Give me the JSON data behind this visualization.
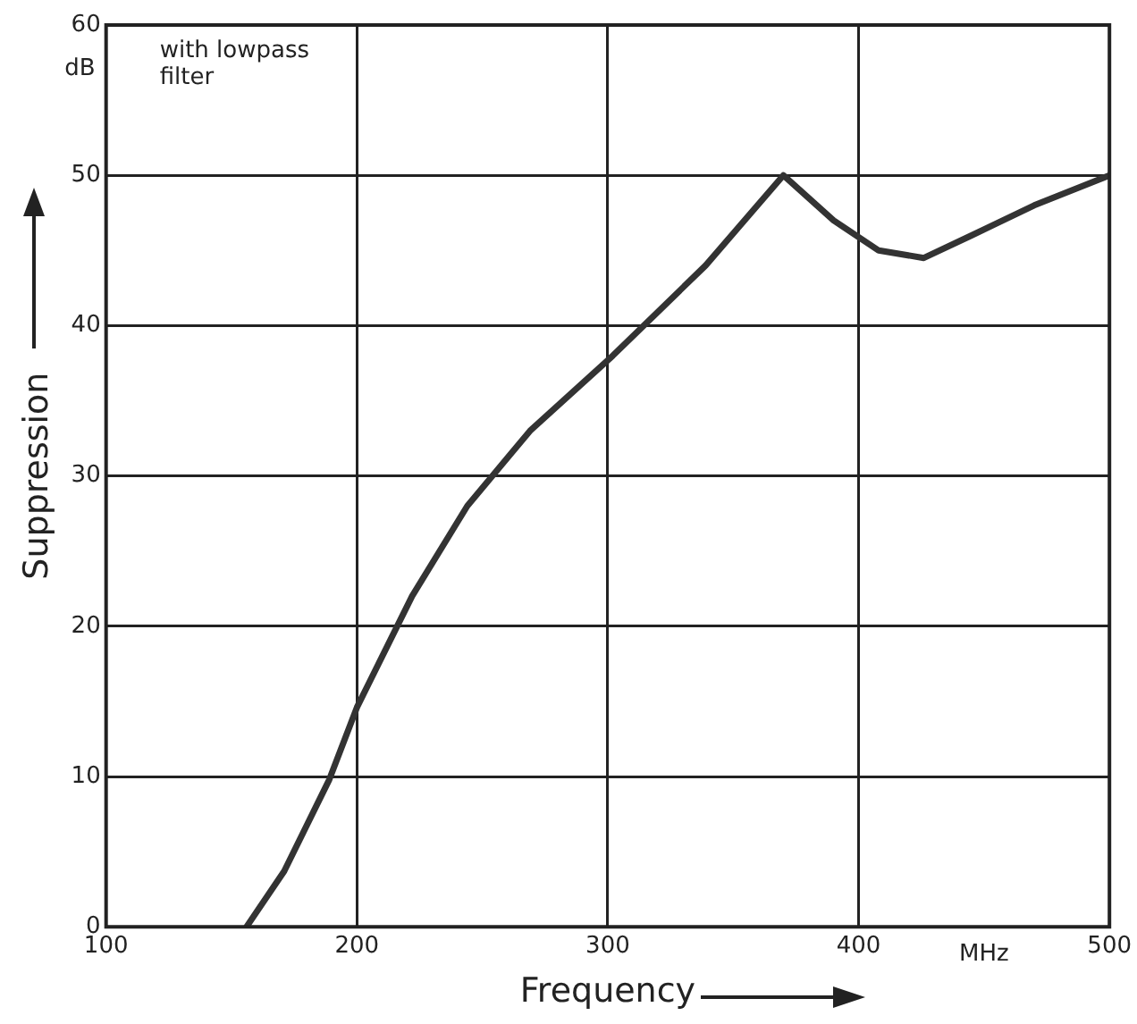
{
  "chart_data": {
    "type": "line",
    "xlabel": "Frequency",
    "ylabel": "Suppression",
    "annotations": [
      "with lowpass\nfilter",
      "dB",
      "MHz"
    ],
    "x": [
      156,
      171,
      189,
      200,
      222,
      244,
      269,
      302,
      339,
      370,
      390,
      408,
      426,
      445,
      470,
      500
    ],
    "series": [
      {
        "color": "#333333",
        "values": [
          0,
          3.7,
          9.8,
          14.6,
          22,
          28,
          33,
          38,
          44,
          50,
          47,
          45,
          44.5,
          46,
          48,
          50
        ]
      }
    ],
    "xlim": [
      100,
      500
    ],
    "xticks": [
      100,
      200,
      300,
      400,
      500
    ],
    "ylim": [
      0,
      60
    ],
    "yticks": [
      0,
      10,
      20,
      30,
      40,
      50,
      60
    ],
    "grid": true,
    "legend": false,
    "marker": "none",
    "line_style": "solid"
  }
}
